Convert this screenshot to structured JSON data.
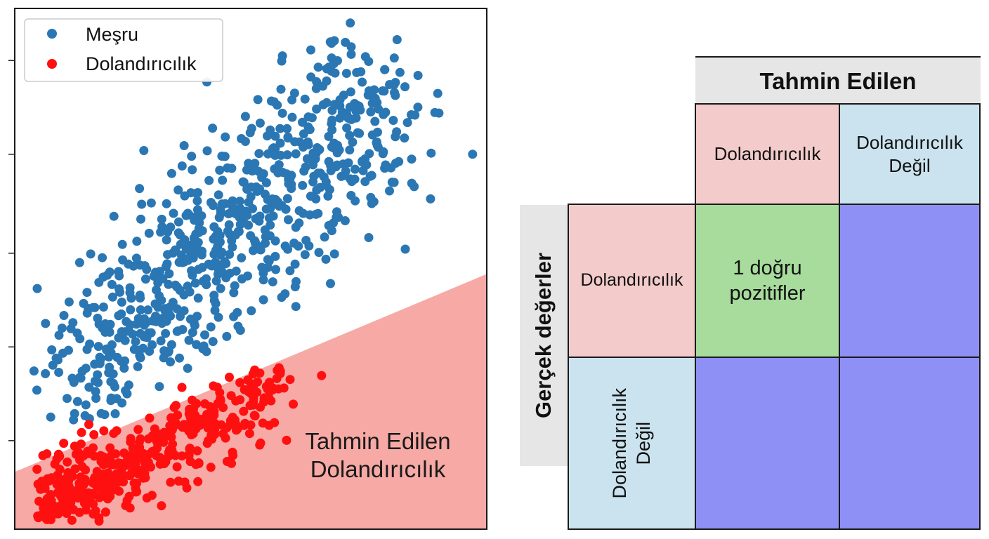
{
  "chart_data": {
    "type": "scatter",
    "legend": {
      "placement": "top-left",
      "entries": [
        {
          "label": "Meşru",
          "color": "#2a77b4"
        },
        {
          "label": "Dolandırıcılık",
          "color": "#ff1010"
        }
      ]
    },
    "xlim": [
      0,
      10
    ],
    "ylim": [
      0,
      10
    ],
    "yticks": [
      1.7,
      3.5,
      5.3,
      7.2,
      9.0
    ],
    "ytick_labels": [
      "",
      "",
      "",
      "",
      ""
    ],
    "decision_boundary": {
      "x": [
        0,
        10
      ],
      "y": [
        1.1,
        4.9
      ],
      "fill_color": "#f7a9a5"
    },
    "region_label": [
      "Tahmin Edilen",
      "Dolandırıcılık"
    ],
    "series": [
      {
        "name": "Meşru",
        "color": "#2a77b4",
        "count": 700,
        "points": [
          [
            8.1,
            9.4
          ],
          [
            8.9,
            8.0
          ],
          [
            9.7,
            7.2
          ],
          [
            6.3,
            7.9
          ],
          [
            3.6,
            6.4
          ],
          [
            4.4,
            6.7
          ],
          [
            1.4,
            2.9
          ],
          [
            1.8,
            3.3
          ],
          [
            2.2,
            4.1
          ],
          [
            4.8,
            7.5
          ],
          [
            7.3,
            7.6
          ],
          [
            3.3,
            5.8
          ],
          [
            5.6,
            7.0
          ],
          [
            6.6,
            6.6
          ],
          [
            7.5,
            5.6
          ]
        ]
      },
      {
        "name": "Dolandırıcılık",
        "color": "#ff1010",
        "count": 420,
        "points": [
          [
            6.5,
            2.95
          ],
          [
            5.6,
            3.1
          ],
          [
            5.9,
            2.4
          ],
          [
            4.5,
            1.3
          ],
          [
            3.3,
            0.9
          ],
          [
            0.6,
            0.3
          ],
          [
            1.0,
            0.6
          ],
          [
            4.1,
            1.7
          ],
          [
            5.0,
            2.0
          ],
          [
            3.7,
            2.3
          ]
        ]
      }
    ]
  },
  "matrix": {
    "predicted_header": "Tahmin Edilen",
    "actual_header": "Gerçek değerler",
    "col_labels": [
      "Dolandırıcılık",
      "Dolandırıcılık\nDeğil"
    ],
    "row_labels": [
      "Dolandırıcılık",
      "Dolandırıcılık\nDeğil"
    ],
    "cells": [
      [
        "1 doğru\npozitifler",
        ""
      ],
      [
        "",
        ""
      ]
    ]
  }
}
